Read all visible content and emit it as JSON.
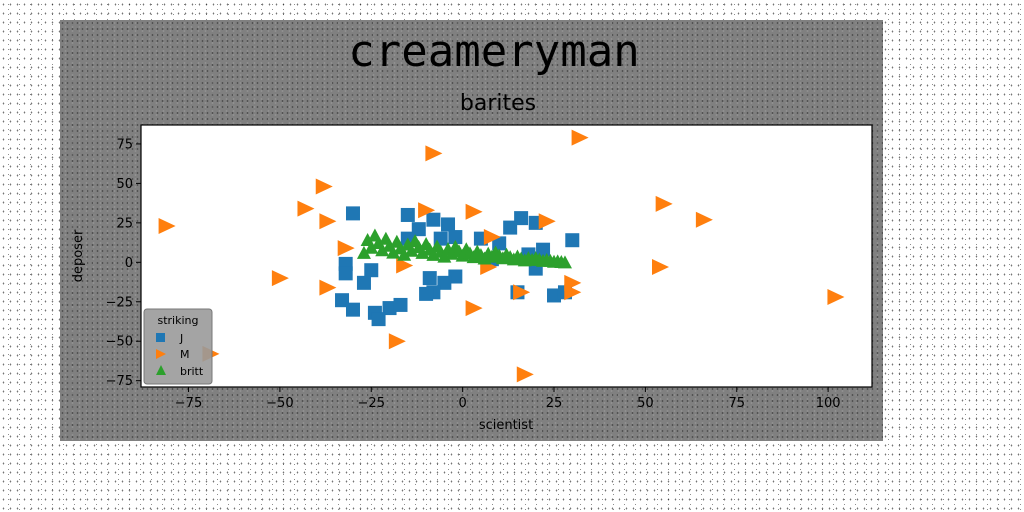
{
  "chart_data": {
    "type": "scatter",
    "title": "creameryman",
    "subtitle": "barites",
    "xlabel": "scientist",
    "ylabel": "deposer",
    "xlim": [
      -88,
      112
    ],
    "ylim": [
      -79,
      87
    ],
    "xticks": [
      -75,
      -50,
      -25,
      0,
      25,
      50,
      75,
      100
    ],
    "yticks": [
      75,
      50,
      25,
      0,
      -25,
      -50,
      -75
    ],
    "grid": false,
    "legend": {
      "title": "striking",
      "placement": "lower-left"
    },
    "series": [
      {
        "name": "J",
        "marker": "square",
        "color": "#1f77b4",
        "points": [
          [
            -30,
            31
          ],
          [
            -15,
            30
          ],
          [
            -8,
            27
          ],
          [
            -4,
            24
          ],
          [
            -12,
            21
          ],
          [
            -15,
            15
          ],
          [
            -6,
            15
          ],
          [
            -2,
            16
          ],
          [
            5,
            15
          ],
          [
            10,
            12
          ],
          [
            13,
            22
          ],
          [
            16,
            28
          ],
          [
            20,
            25
          ],
          [
            30,
            14
          ],
          [
            22,
            8
          ],
          [
            18,
            5
          ],
          [
            8,
            2
          ],
          [
            -32,
            -1
          ],
          [
            -25,
            -5
          ],
          [
            -32,
            -7
          ],
          [
            -27,
            -13
          ],
          [
            -9,
            -10
          ],
          [
            -2,
            -9
          ],
          [
            -5,
            -13
          ],
          [
            -8,
            -19
          ],
          [
            -10,
            -20
          ],
          [
            -33,
            -24
          ],
          [
            -30,
            -30
          ],
          [
            -24,
            -32
          ],
          [
            -20,
            -29
          ],
          [
            -17,
            -27
          ],
          [
            -23,
            -36
          ],
          [
            15,
            -19
          ],
          [
            25,
            -21
          ],
          [
            28,
            -19
          ],
          [
            20,
            -4
          ]
        ]
      },
      {
        "name": "M",
        "marker": "triangle-right",
        "color": "#ff7f0e",
        "points": [
          [
            32,
            79
          ],
          [
            -8,
            69
          ],
          [
            -38,
            48
          ],
          [
            -43,
            34
          ],
          [
            -37,
            26
          ],
          [
            -10,
            33
          ],
          [
            3,
            32
          ],
          [
            23,
            26
          ],
          [
            -81,
            23
          ],
          [
            -32,
            9
          ],
          [
            8,
            16
          ],
          [
            55,
            37
          ],
          [
            66,
            27
          ],
          [
            -16,
            -2
          ],
          [
            7,
            -3
          ],
          [
            54,
            -3
          ],
          [
            -50,
            -10
          ],
          [
            -37,
            -16
          ],
          [
            30,
            -13
          ],
          [
            30,
            -19
          ],
          [
            16,
            -19
          ],
          [
            3,
            -29
          ],
          [
            -18,
            -50
          ],
          [
            102,
            -22
          ],
          [
            17,
            -71
          ],
          [
            -69,
            -58
          ]
        ]
      },
      {
        "name": "britt",
        "marker": "triangle-up",
        "color": "#2ca02c",
        "band": {
          "x_start": -27,
          "x_end": 28,
          "y_top_start": 18,
          "y_top_end": 0,
          "y_bottom_start": 6,
          "y_bottom_end": 0
        }
      }
    ]
  }
}
